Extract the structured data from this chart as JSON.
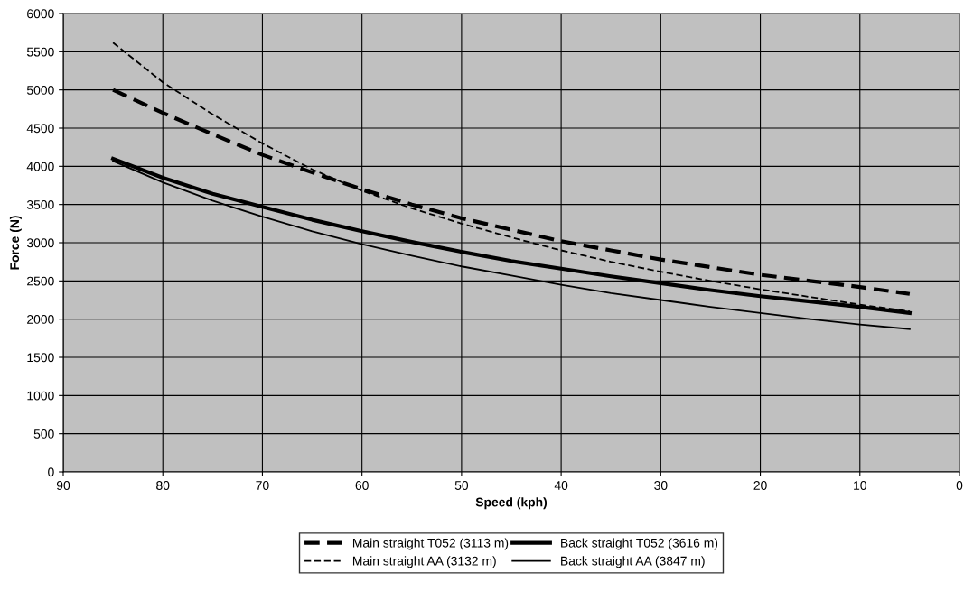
{
  "chart_data": {
    "type": "line",
    "xlabel": "Speed (kph)",
    "ylabel": "Force (N)",
    "x": [
      85,
      80,
      75,
      70,
      65,
      60,
      55,
      50,
      45,
      40,
      35,
      30,
      25,
      20,
      15,
      10,
      5
    ],
    "xlim": [
      90,
      0
    ],
    "xticks": [
      90,
      80,
      70,
      60,
      50,
      40,
      30,
      20,
      10,
      0
    ],
    "ylim": [
      0,
      6000
    ],
    "yticks": [
      0,
      500,
      1000,
      1500,
      2000,
      2500,
      3000,
      3500,
      4000,
      4500,
      5000,
      5500,
      6000
    ],
    "grid": true,
    "legend": "bottom",
    "marker": "none",
    "series": [
      {
        "name": "Main straight T052 (3113 m)",
        "color": "#000000",
        "line_style": "dashed",
        "values": [
          5000,
          4700,
          4420,
          4150,
          3920,
          3700,
          3500,
          3320,
          3170,
          3020,
          2900,
          2780,
          2680,
          2580,
          2500,
          2420,
          2330
        ]
      },
      {
        "name": "Main straight AA (3132 m)",
        "color": "#000000",
        "line_style": "dashed",
        "values": [
          5620,
          5100,
          4680,
          4300,
          3960,
          3680,
          3450,
          3250,
          3070,
          2900,
          2750,
          2620,
          2500,
          2390,
          2290,
          2190,
          2100
        ]
      },
      {
        "name": "Back straight T052 (3616 m)",
        "color": "#000000",
        "line_style": "solid",
        "values": [
          4100,
          3850,
          3640,
          3470,
          3300,
          3150,
          3010,
          2880,
          2760,
          2660,
          2560,
          2470,
          2380,
          2300,
          2230,
          2160,
          2080
        ]
      },
      {
        "name": "Back straight AA (3847 m)",
        "color": "#000000",
        "line_style": "solid",
        "values": [
          4070,
          3790,
          3550,
          3340,
          3150,
          2980,
          2830,
          2690,
          2570,
          2450,
          2340,
          2250,
          2160,
          2080,
          2000,
          1930,
          1870
        ]
      }
    ]
  }
}
